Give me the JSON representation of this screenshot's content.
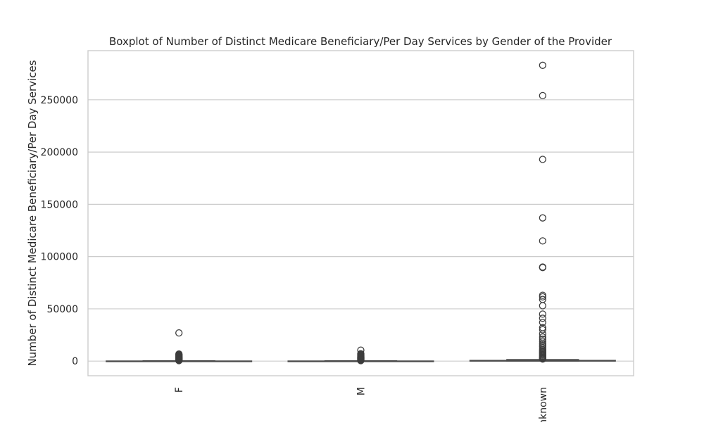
{
  "chart_data": {
    "type": "boxplot",
    "title": "Boxplot of Number of Distinct Medicare Beneficiary/Per Day Services by Gender of the Provider",
    "xlabel": "",
    "ylabel": "Number of Distinct Medicare Beneficiary/Per Day Services",
    "categories": [
      "F",
      "M",
      "Unknown"
    ],
    "yticks": [
      0,
      50000,
      100000,
      150000,
      200000,
      250000
    ],
    "ytick_labels": [
      "0",
      "50000",
      "100000",
      "150000",
      "200000",
      "250000"
    ],
    "ylim": [
      -14000,
      297000
    ],
    "grid": true,
    "box_color": "#4c72b0",
    "boxes": [
      {
        "category": "F",
        "min": 0,
        "q1": 10,
        "median": 40,
        "q3": 150,
        "max": 350,
        "outliers": [
          27000,
          6800,
          6200,
          5600,
          5000,
          4500,
          4000,
          3500,
          3000,
          2600,
          2200,
          1800,
          1500,
          1200,
          900,
          700,
          500
        ]
      },
      {
        "category": "M",
        "min": 0,
        "q1": 10,
        "median": 40,
        "q3": 150,
        "max": 350,
        "outliers": [
          10500,
          7000,
          6300,
          5700,
          5100,
          4600,
          4100,
          3600,
          3100,
          2700,
          2300,
          1900,
          1500,
          1200,
          900,
          700,
          500
        ]
      },
      {
        "category": "Unknown",
        "min": 0,
        "q1": 20,
        "median": 100,
        "q3": 700,
        "max": 1500,
        "outliers": [
          283000,
          254000,
          193000,
          137000,
          115000,
          90000,
          89500,
          63000,
          61500,
          59000,
          53000,
          45000,
          41000,
          37000,
          32000,
          30000,
          26000,
          23000,
          21000,
          19000,
          17000,
          15500,
          14000,
          12500,
          11000,
          10000,
          9000,
          8000,
          7000,
          6000,
          5000,
          4000,
          3200,
          2500,
          2000
        ]
      }
    ]
  }
}
